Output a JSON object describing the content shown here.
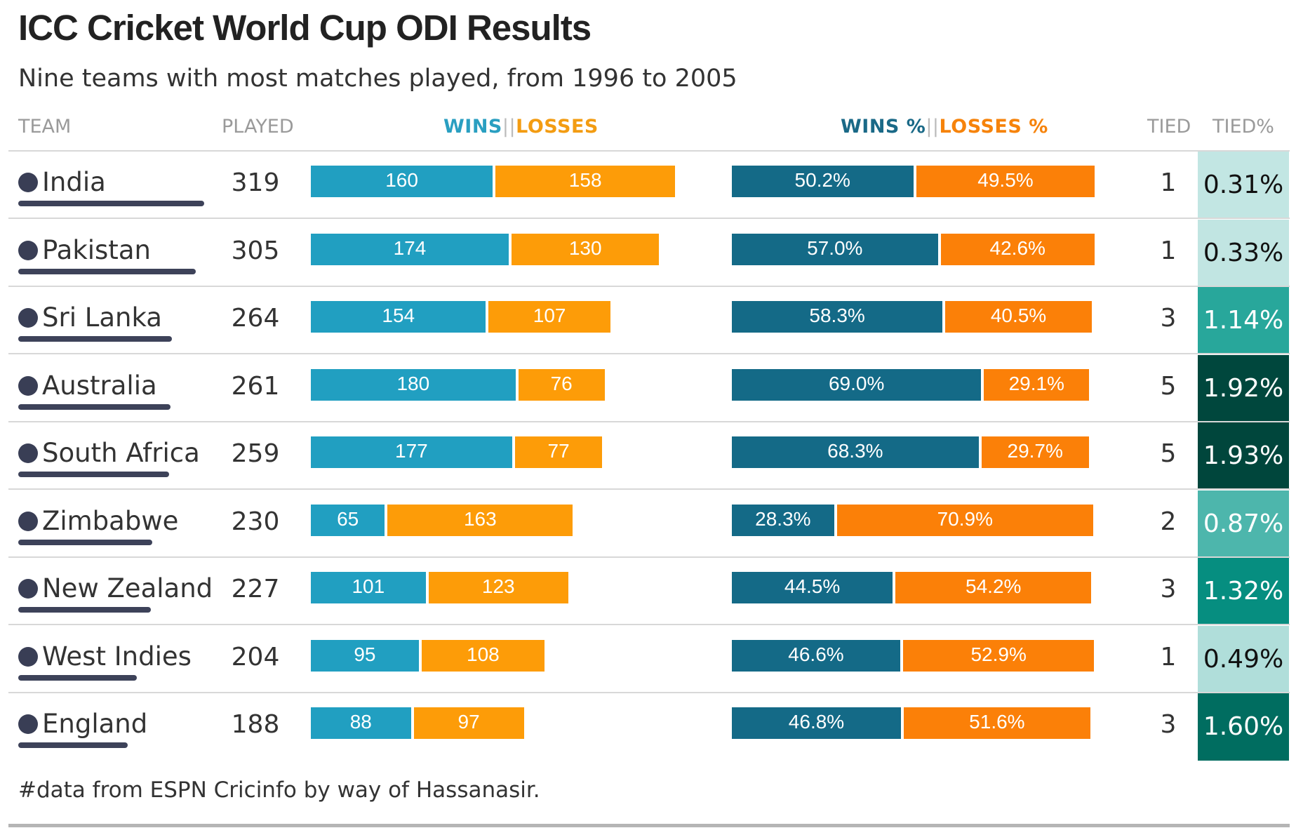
{
  "title": "ICC Cricket World Cup ODI Results",
  "subtitle": "Nine teams with most matches played, from 1996 to 2005",
  "headers": {
    "team": "TEAM",
    "played": "PLAYED",
    "wins": "WINS",
    "losses": "LOSSES",
    "wins_pct": "WINS %",
    "losses_pct": "LOSSES %",
    "tied": "TIED",
    "tied_pct": "TIED%"
  },
  "source": "#data from ESPN Cricinfo by way of Hassanasir.",
  "colors": {
    "wins": "#219fc1",
    "losses": "#fd9c08",
    "wins_pct": "#146a87",
    "losses_pct": "#fb8008",
    "team_dot": "#393e55"
  },
  "chart_data": {
    "type": "table",
    "columns": [
      "TEAM",
      "PLAYED",
      "WINS",
      "LOSSES",
      "WINS %",
      "LOSSES %",
      "TIED",
      "TIED%"
    ],
    "rows": [
      {
        "team": "India",
        "played": 319,
        "wins": 160,
        "losses": 158,
        "wins_pct": 50.2,
        "losses_pct": 49.5,
        "wins_pct_label": "50.2%",
        "losses_pct_label": "49.5%",
        "tied": 1,
        "tied_pct": 0.31,
        "tied_pct_label": "0.31%"
      },
      {
        "team": "Pakistan",
        "played": 305,
        "wins": 174,
        "losses": 130,
        "wins_pct": 57.0,
        "losses_pct": 42.6,
        "wins_pct_label": "57.0%",
        "losses_pct_label": "42.6%",
        "tied": 1,
        "tied_pct": 0.33,
        "tied_pct_label": "0.33%"
      },
      {
        "team": "Sri Lanka",
        "played": 264,
        "wins": 154,
        "losses": 107,
        "wins_pct": 58.3,
        "losses_pct": 40.5,
        "wins_pct_label": "58.3%",
        "losses_pct_label": "40.5%",
        "tied": 3,
        "tied_pct": 1.14,
        "tied_pct_label": "1.14%"
      },
      {
        "team": "Australia",
        "played": 261,
        "wins": 180,
        "losses": 76,
        "wins_pct": 69.0,
        "losses_pct": 29.1,
        "wins_pct_label": "69.0%",
        "losses_pct_label": "29.1%",
        "tied": 5,
        "tied_pct": 1.92,
        "tied_pct_label": "1.92%"
      },
      {
        "team": "South Africa",
        "played": 259,
        "wins": 177,
        "losses": 77,
        "wins_pct": 68.3,
        "losses_pct": 29.7,
        "wins_pct_label": "68.3%",
        "losses_pct_label": "29.7%",
        "tied": 5,
        "tied_pct": 1.93,
        "tied_pct_label": "1.93%"
      },
      {
        "team": "Zimbabwe",
        "played": 230,
        "wins": 65,
        "losses": 163,
        "wins_pct": 28.3,
        "losses_pct": 70.9,
        "wins_pct_label": "28.3%",
        "losses_pct_label": "70.9%",
        "tied": 2,
        "tied_pct": 0.87,
        "tied_pct_label": "0.87%"
      },
      {
        "team": "New Zealand",
        "played": 227,
        "wins": 101,
        "losses": 123,
        "wins_pct": 44.5,
        "losses_pct": 54.2,
        "wins_pct_label": "44.5%",
        "losses_pct_label": "54.2%",
        "tied": 3,
        "tied_pct": 1.32,
        "tied_pct_label": "1.32%"
      },
      {
        "team": "West Indies",
        "played": 204,
        "wins": 95,
        "losses": 108,
        "wins_pct": 46.6,
        "losses_pct": 52.9,
        "wins_pct_label": "46.6%",
        "losses_pct_label": "52.9%",
        "tied": 1,
        "tied_pct": 0.49,
        "tied_pct_label": "0.49%"
      },
      {
        "team": "England",
        "played": 188,
        "wins": 88,
        "losses": 97,
        "wins_pct": 46.8,
        "losses_pct": 51.6,
        "wins_pct_label": "46.8%",
        "losses_pct_label": "51.6%",
        "tied": 3,
        "tied_pct": 1.6,
        "tied_pct_label": "1.60%"
      }
    ]
  }
}
